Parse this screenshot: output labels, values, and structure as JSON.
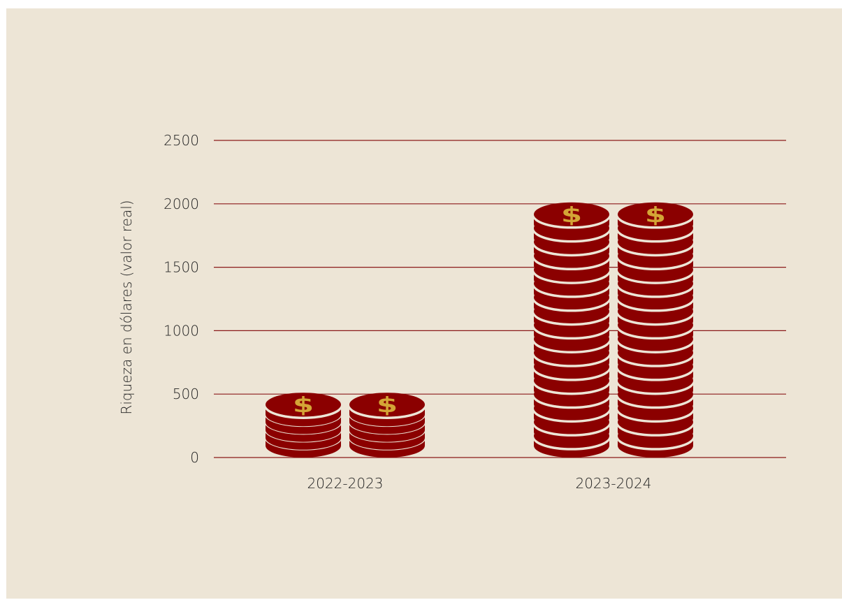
{
  "chart_data": {
    "type": "bar",
    "categories": [
      "2022-2023",
      "2023-2024"
    ],
    "values": [
      500,
      2000
    ],
    "ylabel": "Riqueza en dólares (valor real)",
    "ylim": [
      0,
      2500
    ],
    "yticks": [
      0,
      500,
      1000,
      1500,
      2000,
      2500
    ],
    "grid": true,
    "mark_style": "stacked-coins",
    "coins_per_stack": [
      5,
      17
    ],
    "stacks_per_category": 2,
    "coin_symbol": "$",
    "colors": {
      "background": "#ede5d6",
      "coin": "#8b0000",
      "coin_stripe": "#ede5d6",
      "symbol": "#d4a536",
      "gridline": "#8b1a1a",
      "text": "#222222"
    }
  }
}
